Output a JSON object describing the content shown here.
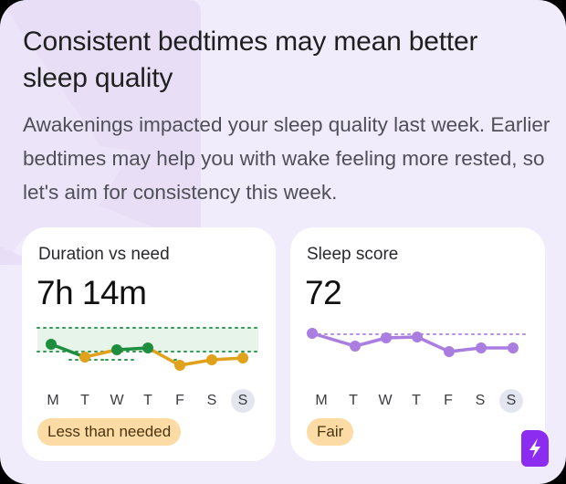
{
  "insight": {
    "title": "Consistent bedtimes may mean better sleep quality",
    "body": "Awakenings impacted your sleep quality last week. Earlier bedtimes may help you with wake feeling more rested, so let's aim for consistency this week."
  },
  "duration_card": {
    "label": "Duration vs need",
    "value": "7h 14m",
    "status": "Less than needed",
    "days": [
      "M",
      "T",
      "W",
      "T",
      "F",
      "S",
      "S"
    ],
    "today_index": 6
  },
  "score_card": {
    "label": "Sleep score",
    "value": "72",
    "status": "Fair",
    "days": [
      "M",
      "T",
      "W",
      "T",
      "F",
      "S",
      "S"
    ],
    "today_index": 6
  },
  "colors": {
    "background": "#f1ecfb",
    "card": "#ffffff",
    "duration_met": "#1e8e3e",
    "duration_short": "#e0a21a",
    "need_band": "#e6f4ea",
    "score_line": "#a97ee0",
    "status_pill": "#fcdca4",
    "brand_badge": "#8b2cf0"
  },
  "icons": {
    "brand": "lightning-bolt-badge-icon",
    "watermark": "lightning-bolt-watermark"
  }
}
